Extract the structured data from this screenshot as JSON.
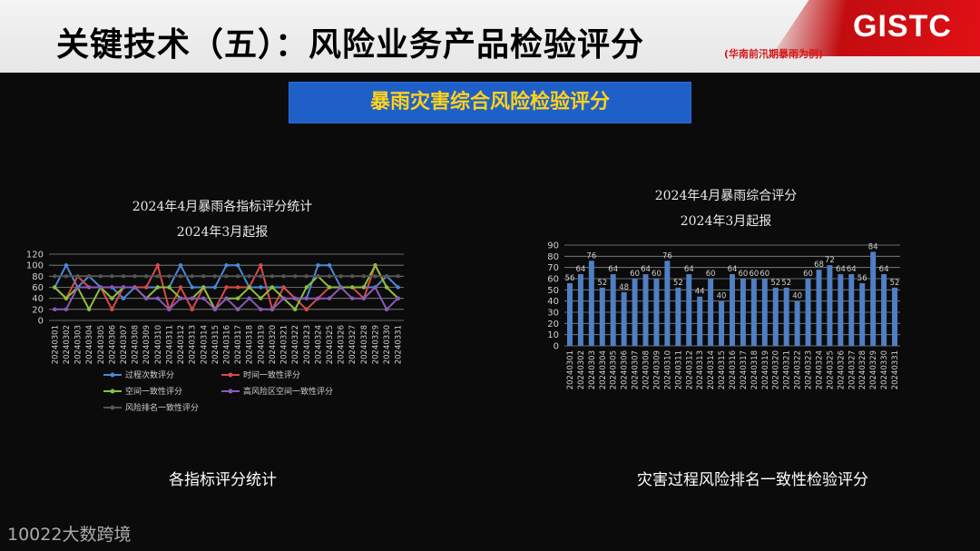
{
  "header": {
    "title": "关键技术（五）：风险业务产品检验评分",
    "subtitle": "(华南前汛期暴雨为例)",
    "logo_text": "GISTC"
  },
  "banner": {
    "text": "暴雨灾害综合风险检验评分"
  },
  "captions": {
    "left": "各指标评分统计",
    "right": "灾害过程风险排名一致性检验评分"
  },
  "watermark": "10022大数跨境",
  "colors": {
    "header_bg": "#eeeeee",
    "accent_red": "#d41a1a",
    "banner_bg": "#1f5fc8",
    "banner_text": "#ffd21a",
    "bar_fill": "#4f7fc4"
  },
  "chart_data": [
    {
      "type": "line",
      "title": "2024年4月暴雨各指标评分统计",
      "subtitle": "2024年3月起报",
      "ylim": [
        0,
        120
      ],
      "yticks": [
        0,
        20,
        40,
        60,
        80,
        100,
        120
      ],
      "grid": true,
      "legend_position": "bottom",
      "categories": [
        "20240301",
        "20240302",
        "20240303",
        "20240304",
        "20240305",
        "20240306",
        "20240307",
        "20240308",
        "20240309",
        "20240310",
        "20240311",
        "20240312",
        "20240313",
        "20240314",
        "20240315",
        "20240316",
        "20240317",
        "20240318",
        "20240319",
        "20240320",
        "20240321",
        "20240322",
        "20240323",
        "20240324",
        "20240325",
        "20240326",
        "20240327",
        "20240328",
        "20240329",
        "20240330",
        "20240331"
      ],
      "series": [
        {
          "name": "过程次数评分",
          "color": "#4a8ad8",
          "values": [
            60,
            100,
            60,
            80,
            60,
            60,
            40,
            60,
            60,
            60,
            60,
            100,
            60,
            60,
            60,
            100,
            100,
            60,
            60,
            60,
            60,
            40,
            40,
            100,
            100,
            60,
            60,
            60,
            60,
            80,
            60
          ]
        },
        {
          "name": "时间一致性评分",
          "color": "#d84a4a",
          "values": [
            60,
            40,
            80,
            60,
            60,
            20,
            60,
            60,
            60,
            100,
            20,
            60,
            20,
            60,
            20,
            60,
            60,
            60,
            100,
            20,
            60,
            40,
            20,
            40,
            60,
            60,
            60,
            40,
            100,
            60,
            40
          ]
        },
        {
          "name": "空间一致性评分",
          "color": "#8cbf3c",
          "values": [
            60,
            40,
            60,
            20,
            60,
            40,
            60,
            60,
            40,
            60,
            60,
            40,
            40,
            60,
            20,
            40,
            40,
            60,
            40,
            60,
            40,
            20,
            60,
            80,
            60,
            60,
            60,
            60,
            100,
            60,
            40
          ]
        },
        {
          "name": "高风险区空间一致性评分",
          "color": "#8a5bb8",
          "values": [
            20,
            20,
            60,
            60,
            60,
            60,
            60,
            60,
            40,
            40,
            20,
            40,
            40,
            40,
            20,
            40,
            20,
            40,
            20,
            20,
            40,
            40,
            40,
            40,
            40,
            60,
            40,
            40,
            60,
            20,
            40
          ]
        },
        {
          "name": "风险排名一致性评分",
          "color": "#555555",
          "values": [
            80,
            80,
            80,
            80,
            80,
            80,
            80,
            80,
            80,
            80,
            80,
            80,
            80,
            80,
            80,
            80,
            80,
            80,
            80,
            80,
            80,
            80,
            80,
            80,
            80,
            80,
            80,
            80,
            80,
            80,
            80
          ]
        }
      ]
    },
    {
      "type": "bar",
      "title": "2024年4月暴雨综合评分",
      "subtitle": "2024年3月起报",
      "ylim": [
        0,
        90
      ],
      "yticks": [
        0,
        10,
        20,
        30,
        40,
        50,
        60,
        70,
        80,
        90
      ],
      "grid": true,
      "categories": [
        "20240301",
        "20240302",
        "20240303",
        "20240304",
        "20240305",
        "20240306",
        "20240307",
        "20240308",
        "20240309",
        "20240310",
        "20240311",
        "20240312",
        "20240313",
        "20240314",
        "20240315",
        "20240316",
        "20240317",
        "20240318",
        "20240319",
        "20240320",
        "20240321",
        "20240322",
        "20240323",
        "20240324",
        "20240325",
        "20240326",
        "20240327",
        "20240328",
        "20240329",
        "20240330",
        "20240331"
      ],
      "values": [
        56,
        64,
        76,
        52,
        64,
        48,
        60,
        64,
        60,
        76,
        52,
        64,
        44,
        60,
        40,
        64,
        60,
        60,
        60,
        52,
        52,
        40,
        60,
        68,
        72,
        64,
        64,
        56,
        84,
        64,
        52
      ]
    }
  ]
}
